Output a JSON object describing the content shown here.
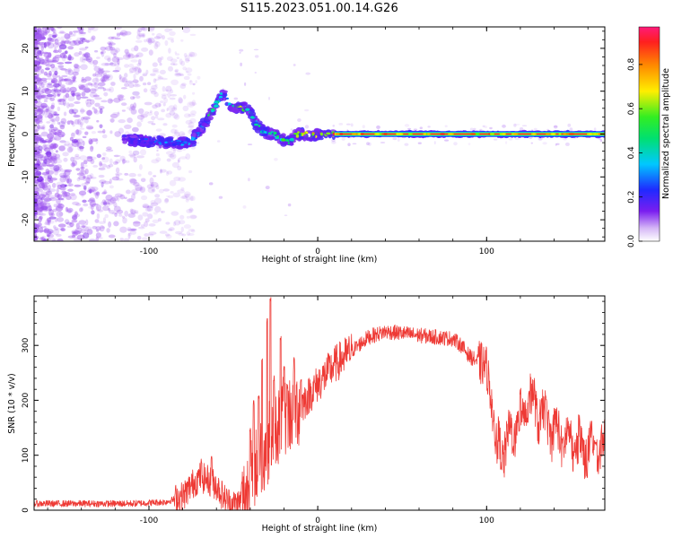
{
  "title": "S115.2023.051.00.14.G26",
  "colors": {
    "snr_line": "#ee3a35",
    "wave_core": "#ff2a55",
    "scatter": "#a25cf0"
  },
  "chart_data": [
    {
      "type": "heatmap",
      "xlabel": "Height of straight line (km)",
      "ylabel": "Frequency (Hz)",
      "xlim": [
        -168,
        170
      ],
      "ylim": [
        -25,
        25
      ],
      "xticks": [
        -100,
        0,
        100
      ],
      "xtick_labels": [
        "-100",
        "0",
        "100"
      ],
      "yticks": [
        -20,
        -10,
        0,
        10,
        20
      ],
      "ytick_labels": [
        "-20",
        "-10",
        "0",
        "10",
        "20"
      ],
      "colorbar": {
        "label": "Normalized spectral amplitude",
        "ticks": [
          0.0,
          0.2,
          0.4,
          0.6,
          0.8
        ],
        "tick_labels": [
          "0.0",
          "0.2",
          "0.4",
          "0.6",
          "0.8"
        ],
        "range": [
          0,
          0.97
        ],
        "colormap": "rainbow"
      },
      "ridge": {
        "x": [
          -115,
          -105,
          -95,
          -85,
          -75,
          -68,
          -63,
          -58,
          -56,
          -52,
          -46,
          -41,
          -37,
          -32,
          -27,
          -22,
          -18,
          -16,
          -12,
          -8,
          -4,
          0,
          5,
          10,
          170
        ],
        "y": [
          -1.5,
          -1.5,
          -1.8,
          -2.0,
          -2.0,
          2.0,
          5.0,
          8.5,
          9.5,
          6.5,
          6.0,
          6.0,
          2.5,
          0.5,
          0.0,
          -0.8,
          -2.0,
          -1.5,
          0.0,
          0.0,
          -0.5,
          0.0,
          0.0,
          0.0,
          0.0
        ],
        "amplitude": [
          0.15,
          0.25,
          0.3,
          0.35,
          0.4,
          0.4,
          0.55,
          0.45,
          0.3,
          0.55,
          0.8,
          0.55,
          0.5,
          0.45,
          0.45,
          0.55,
          0.55,
          0.55,
          0.65,
          0.8,
          0.8,
          0.85,
          0.9,
          0.95,
          0.95
        ]
      }
    },
    {
      "type": "line",
      "xlabel": "Height of straight line (km)",
      "ylabel": "SNR (10 * v/v)",
      "xlim": [
        -168,
        170
      ],
      "ylim": [
        0,
        390
      ],
      "xticks": [
        -100,
        0,
        100
      ],
      "xtick_labels": [
        "-100",
        "0",
        "100"
      ],
      "yticks": [
        0,
        100,
        200,
        300
      ],
      "ytick_labels": [
        "0",
        "100",
        "200",
        "300"
      ],
      "envelope": {
        "x": [
          -168,
          -110,
          -90,
          -80,
          -75,
          -70,
          -65,
          -60,
          -55,
          -50,
          -45,
          -40,
          -35,
          -30,
          -25,
          -20,
          -15,
          -10,
          -5,
          0,
          10,
          20,
          30,
          40,
          50,
          60,
          70,
          80,
          85,
          90,
          95,
          100,
          103,
          105,
          110,
          120,
          125,
          130,
          140,
          150,
          160,
          170
        ],
        "y": [
          12,
          12,
          15,
          25,
          45,
          60,
          55,
          45,
          20,
          10,
          15,
          50,
          90,
          120,
          150,
          170,
          180,
          190,
          210,
          230,
          265,
          290,
          315,
          325,
          322,
          318,
          315,
          312,
          300,
          280,
          270,
          260,
          200,
          110,
          115,
          160,
          210,
          180,
          145,
          120,
          110,
          115
        ]
      },
      "spikes": {
        "x": [
          -69,
          -63,
          -45,
          -40,
          -38,
          -35,
          -33,
          -30,
          -28,
          -26,
          -22,
          -20,
          -18,
          -14,
          -10,
          120,
          125,
          135,
          145,
          155,
          165
        ],
        "y": [
          95,
          100,
          55,
          150,
          200,
          210,
          280,
          350,
          390,
          245,
          320,
          265,
          230,
          280,
          240,
          200,
          230,
          200,
          160,
          150,
          140
        ]
      }
    }
  ]
}
